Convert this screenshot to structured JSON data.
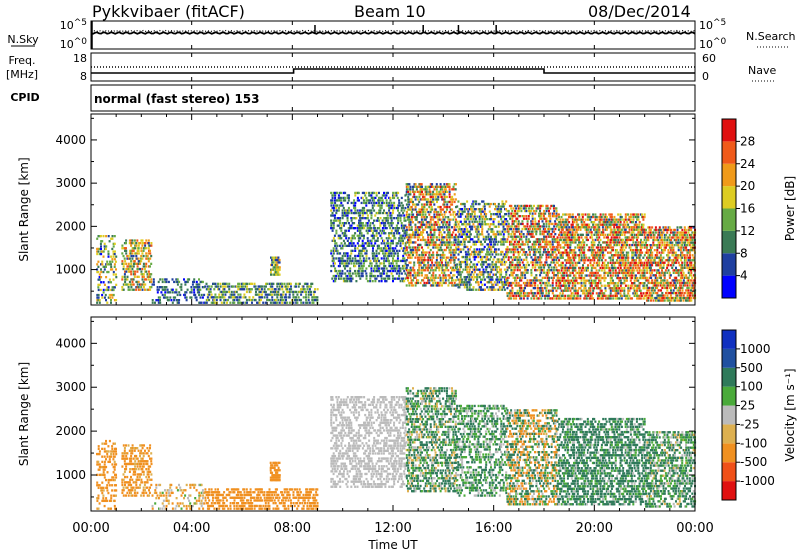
{
  "header": {
    "station": "Pykkvibaer (fitACF)",
    "beam": "Beam 10",
    "date": "08/Dec/2014"
  },
  "status_panels": {
    "nsky_label": "N.Sky",
    "nsky_ticks": [
      "10^5",
      "10^0"
    ],
    "nsearch_label": "N.Search",
    "nsearch_ticks": [
      "10^5",
      "10^0"
    ],
    "freq_label": "Freq.",
    "freq_unit": "[MHz]",
    "freq_ticks": [
      "18",
      "8"
    ],
    "nave_label": "Nave",
    "nave_ticks": [
      "60",
      "0"
    ],
    "cpid_label": "CPID",
    "cpid_text": "normal (fast stereo) 153"
  },
  "x_axis": {
    "label": "Time UT",
    "ticks": [
      "00:00",
      "04:00",
      "08:00",
      "12:00",
      "16:00",
      "20:00",
      "00:00"
    ]
  },
  "colors": {
    "power_scale": [
      "#0000ff",
      "#1f3fa0",
      "#3a7a55",
      "#66aa44",
      "#ddcc22",
      "#f09a1a",
      "#f05a1a",
      "#e01010"
    ],
    "velocity_scale": [
      "#1030c0",
      "#2050a0",
      "#2f7a5a",
      "#4aaa3a",
      "#bbbbbb",
      "#ddb050",
      "#f09020",
      "#f05018",
      "#e01010"
    ]
  },
  "chart_data": [
    {
      "type": "heatmap",
      "panel": "power",
      "ylabel": "Slant Range [km]",
      "xlabel": "",
      "xlim": [
        0,
        24
      ],
      "ylim": [
        180,
        4600
      ],
      "y_ticks": [
        "1000",
        "2000",
        "3000",
        "4000"
      ],
      "colorbar": {
        "label": "Power [dB]",
        "ticks": [
          "4",
          "8",
          "12",
          "16",
          "20",
          "24",
          "28"
        ],
        "range": [
          0,
          30
        ]
      },
      "scatter_regions": [
        {
          "t0": 0.2,
          "t1": 1.0,
          "r0": 200,
          "r1": 1800,
          "v0": 2,
          "v1": 22,
          "d": 0.35
        },
        {
          "t0": 1.2,
          "t1": 2.4,
          "r0": 500,
          "r1": 1700,
          "v0": 6,
          "v1": 26,
          "d": 0.5
        },
        {
          "t0": 2.4,
          "t1": 4.5,
          "r0": 200,
          "r1": 800,
          "v0": 2,
          "v1": 12,
          "d": 0.35
        },
        {
          "t0": 4.5,
          "t1": 9.0,
          "r0": 200,
          "r1": 700,
          "v0": 4,
          "v1": 18,
          "d": 0.55
        },
        {
          "t0": 7.1,
          "t1": 7.5,
          "r0": 850,
          "r1": 1300,
          "v0": 4,
          "v1": 20,
          "d": 0.8
        },
        {
          "t0": 9.5,
          "t1": 12.5,
          "r0": 700,
          "r1": 2800,
          "v0": 2,
          "v1": 16,
          "d": 0.45
        },
        {
          "t0": 12.5,
          "t1": 14.5,
          "r0": 600,
          "r1": 3000,
          "v0": 4,
          "v1": 28,
          "d": 0.55
        },
        {
          "t0": 14.5,
          "t1": 16.5,
          "r0": 500,
          "r1": 2600,
          "v0": 2,
          "v1": 22,
          "d": 0.5
        },
        {
          "t0": 16.5,
          "t1": 18.5,
          "r0": 300,
          "r1": 2500,
          "v0": 4,
          "v1": 30,
          "d": 0.55
        },
        {
          "t0": 18.5,
          "t1": 22.0,
          "r0": 300,
          "r1": 2300,
          "v0": 6,
          "v1": 30,
          "d": 0.6
        },
        {
          "t0": 22.0,
          "t1": 24.0,
          "r0": 250,
          "r1": 2000,
          "v0": 6,
          "v1": 30,
          "d": 0.6
        }
      ]
    },
    {
      "type": "heatmap",
      "panel": "velocity",
      "ylabel": "Slant Range [km]",
      "xlabel": "Time UT",
      "xlim": [
        0,
        24
      ],
      "ylim": [
        180,
        4600
      ],
      "y_ticks": [
        "1000",
        "2000",
        "3000",
        "4000"
      ],
      "colorbar": {
        "label": "Velocity [m s⁻¹]",
        "ticks": [
          "1000",
          "500",
          "100",
          "25",
          "-25",
          "-100",
          "-500",
          "-1000"
        ],
        "range": [
          -1200,
          1200
        ]
      },
      "scatter_regions": [
        {
          "t0": 0.2,
          "t1": 1.0,
          "r0": 200,
          "r1": 1800,
          "v0": -500,
          "v1": -50,
          "d": 0.35
        },
        {
          "t0": 1.2,
          "t1": 2.4,
          "r0": 500,
          "r1": 1700,
          "v0": -300,
          "v1": -30,
          "d": 0.45
        },
        {
          "t0": 2.4,
          "t1": 4.5,
          "r0": 200,
          "r1": 800,
          "v0": -200,
          "v1": 50,
          "d": 0.3
        },
        {
          "t0": 4.5,
          "t1": 9.0,
          "r0": 200,
          "r1": 700,
          "v0": -400,
          "v1": -100,
          "d": 0.55
        },
        {
          "t0": 7.1,
          "t1": 7.5,
          "r0": 850,
          "r1": 1300,
          "v0": -400,
          "v1": -100,
          "d": 0.8
        },
        {
          "t0": 9.5,
          "t1": 12.5,
          "r0": 700,
          "r1": 2800,
          "v0": -20,
          "v1": 20,
          "d": 0.45
        },
        {
          "t0": 12.5,
          "t1": 14.5,
          "r0": 600,
          "r1": 3000,
          "v0": -80,
          "v1": 300,
          "d": 0.5
        },
        {
          "t0": 14.5,
          "t1": 16.5,
          "r0": 500,
          "r1": 2600,
          "v0": -20,
          "v1": 200,
          "d": 0.45
        },
        {
          "t0": 16.5,
          "t1": 18.5,
          "r0": 300,
          "r1": 2500,
          "v0": -300,
          "v1": 300,
          "d": 0.5
        },
        {
          "t0": 18.5,
          "t1": 22.0,
          "r0": 300,
          "r1": 2300,
          "v0": -20,
          "v1": 400,
          "d": 0.55
        },
        {
          "t0": 22.0,
          "t1": 24.0,
          "r0": 250,
          "r1": 2000,
          "v0": -50,
          "v1": 300,
          "d": 0.55
        }
      ]
    }
  ]
}
